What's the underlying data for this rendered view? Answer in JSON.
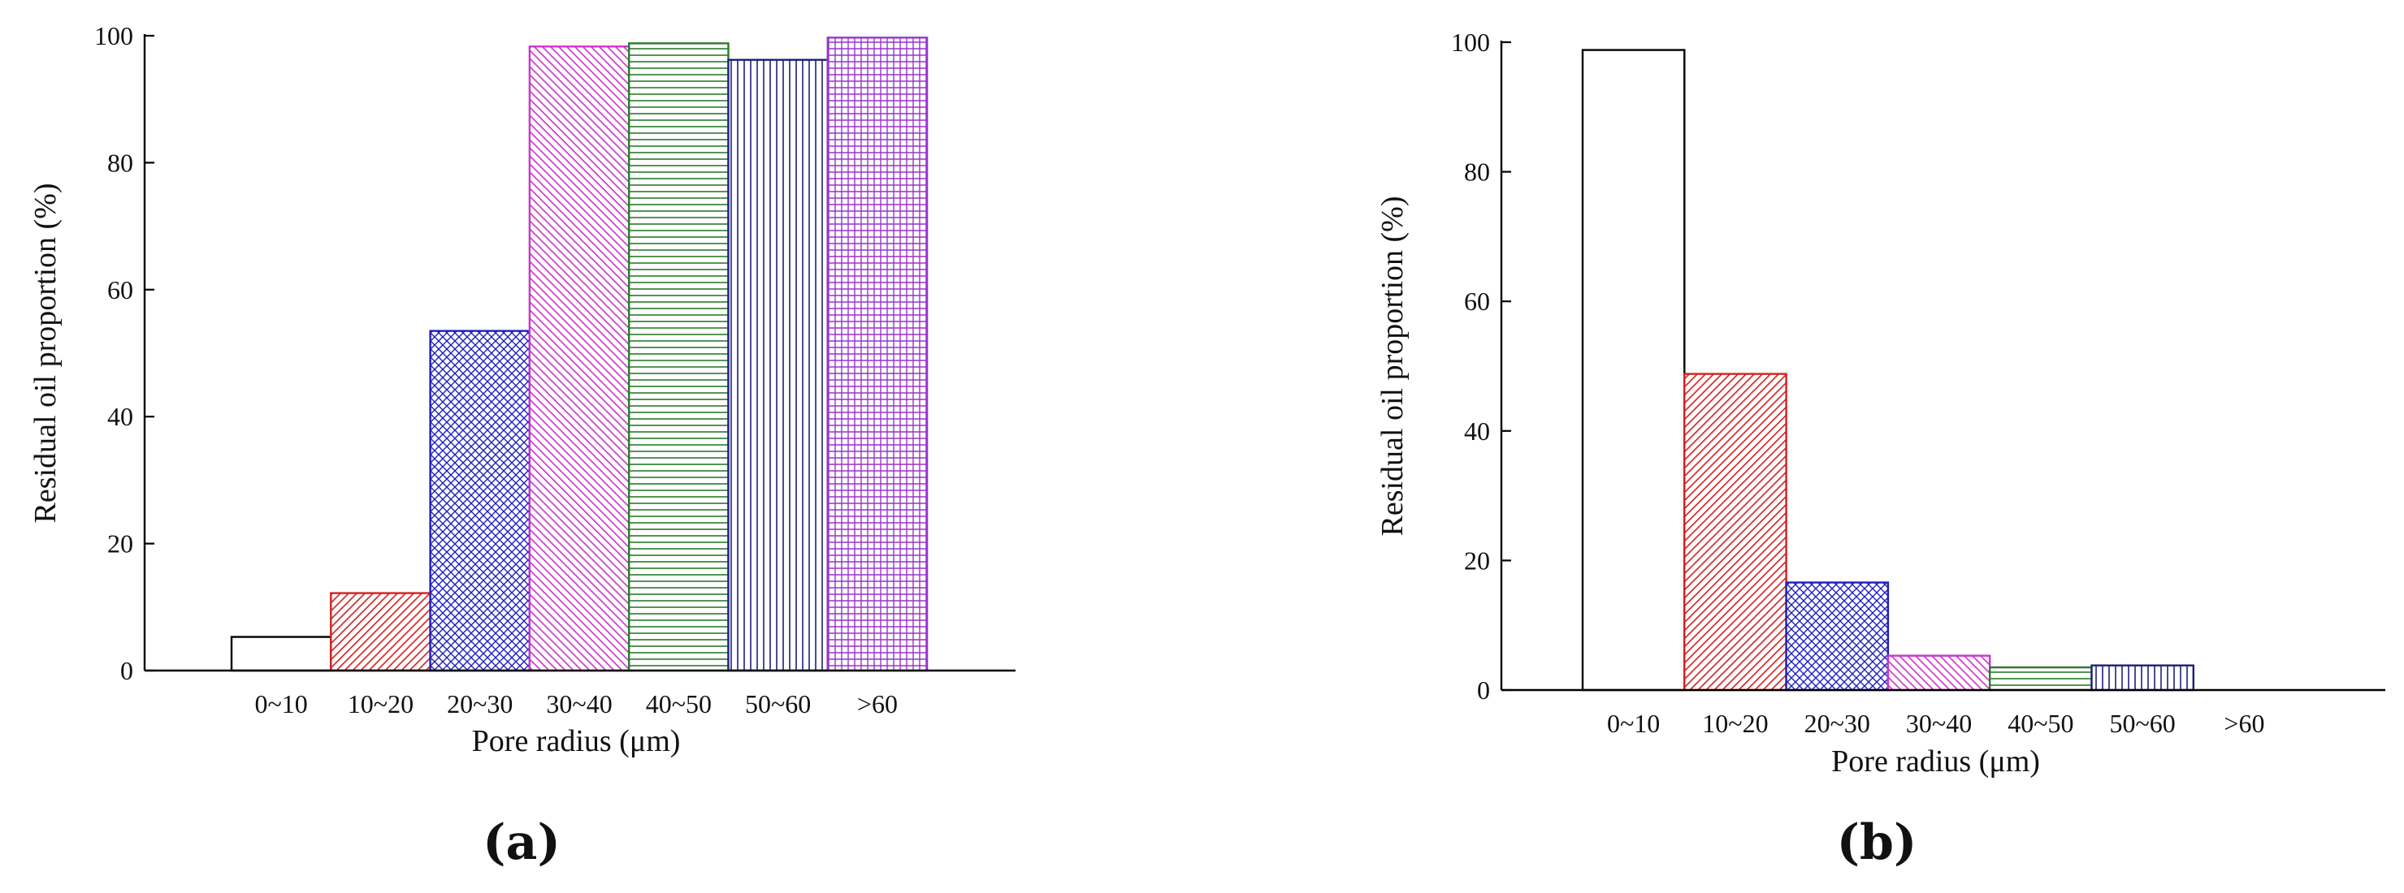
{
  "chart_data": [
    {
      "type": "bar",
      "panel_label": "(a)",
      "categories": [
        "0~10",
        "10~20",
        "20~30",
        "30~40",
        "40~50",
        "50~60",
        ">60"
      ],
      "values": [
        5.3,
        12.2,
        53.5,
        98.3,
        98.8,
        96.2,
        99.7
      ],
      "xlabel": "Pore radius (μm)",
      "ylabel": "Residual oil proportion (%)",
      "ylim": [
        0,
        100
      ],
      "yticks": [
        "0",
        "20",
        "40",
        "60",
        "80",
        "100"
      ],
      "grid": false,
      "bar_styles": [
        {
          "color": "#000000",
          "pattern": "none"
        },
        {
          "color": "#d62020",
          "pattern": "diag-right"
        },
        {
          "color": "#1f1fbf",
          "pattern": "crosshatch"
        },
        {
          "color": "#cc33cc",
          "pattern": "diag-left"
        },
        {
          "color": "#2a7a2a",
          "pattern": "horizontal"
        },
        {
          "color": "#1f1f7a",
          "pattern": "vertical"
        },
        {
          "color": "#9933cc",
          "pattern": "grid"
        }
      ]
    },
    {
      "type": "bar",
      "panel_label": "(b)",
      "categories": [
        "0~10",
        "10~20",
        "20~30",
        "30~40",
        "40~50",
        "50~60",
        ">60"
      ],
      "values": [
        98.8,
        48.8,
        16.6,
        5.3,
        3.5,
        3.8,
        0
      ],
      "xlabel": "Pore radius (μm)",
      "ylabel": "Residual oil proportion (%)",
      "ylim": [
        0,
        100
      ],
      "yticks": [
        "0",
        "20",
        "40",
        "60",
        "80",
        "100"
      ],
      "grid": false,
      "bar_styles": [
        {
          "color": "#000000",
          "pattern": "none"
        },
        {
          "color": "#d62020",
          "pattern": "diag-right"
        },
        {
          "color": "#1f1fbf",
          "pattern": "crosshatch"
        },
        {
          "color": "#cc33cc",
          "pattern": "diag-left"
        },
        {
          "color": "#2a7a2a",
          "pattern": "horizontal"
        },
        {
          "color": "#1f1f7a",
          "pattern": "vertical"
        },
        {
          "color": "#9933cc",
          "pattern": "grid"
        }
      ]
    }
  ]
}
